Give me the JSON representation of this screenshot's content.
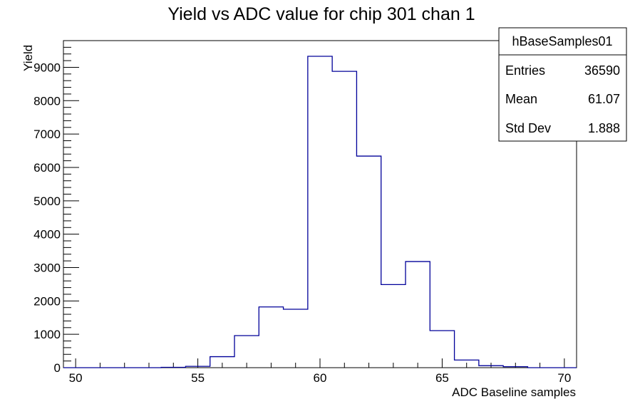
{
  "chart_data": {
    "type": "bar",
    "title": "Yield vs ADC value for chip 301 chan 1",
    "xlabel": "ADC Baseline samples",
    "ylabel": "Yield",
    "xlim": [
      49.5,
      70.5
    ],
    "ylim": [
      0,
      9800
    ],
    "bin_width": 1,
    "x_ticks": [
      "50",
      "55",
      "60",
      "65",
      "70"
    ],
    "y_ticks": [
      "0",
      "1000",
      "2000",
      "3000",
      "4000",
      "5000",
      "6000",
      "7000",
      "8000",
      "9000"
    ],
    "bin_centers": [
      50,
      51,
      52,
      53,
      54,
      55,
      56,
      57,
      58,
      59,
      60,
      61,
      62,
      63,
      64,
      65,
      66,
      67,
      68,
      69,
      70
    ],
    "values": [
      0,
      0,
      0,
      0,
      10,
      40,
      330,
      960,
      1820,
      1750,
      9330,
      8880,
      6340,
      2490,
      3180,
      1110,
      230,
      60,
      30,
      0,
      0
    ],
    "line_color": "#000099",
    "grid": false,
    "stats_box": {
      "title": "hBaseSamples01",
      "rows": [
        {
          "label": "Entries",
          "value": "36590"
        },
        {
          "label": "Mean",
          "value": "61.07"
        },
        {
          "label": "Std Dev",
          "value": "1.888"
        }
      ]
    }
  }
}
